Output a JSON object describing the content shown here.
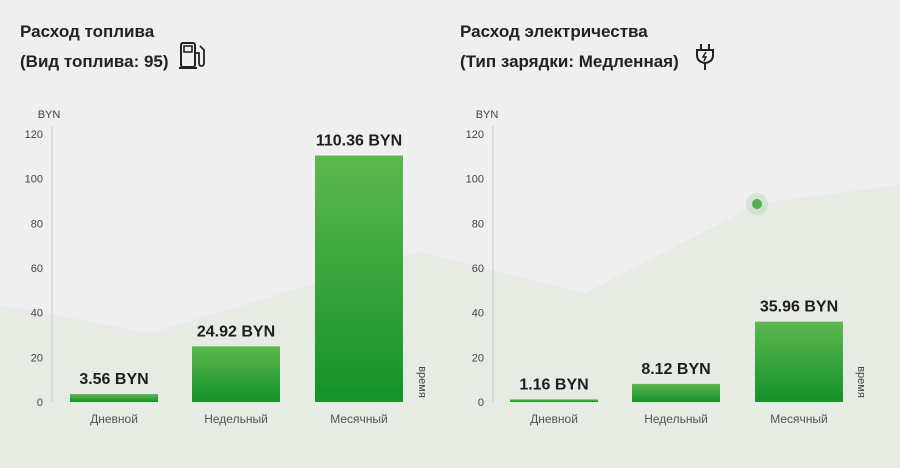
{
  "colors": {
    "background": "#efefef",
    "bar_top": "#5cb84e",
    "bar_bottom": "#15912a",
    "area_fill": "#e6ebe4",
    "marker": "#4caf50"
  },
  "fuel": {
    "title": "Расход топлива",
    "subtitle": "(Вид топлива: 95)",
    "icon": "fuel-pump-icon"
  },
  "electric": {
    "title": "Расход электричества",
    "subtitle": "(Тип зарядки: Медленная)",
    "icon": "charging-plug-icon"
  },
  "chart_data": [
    {
      "type": "bar",
      "categories": [
        "Дневной",
        "Недельный",
        "Месячный"
      ],
      "values": [
        3.56,
        24.92,
        110.36
      ],
      "value_labels": [
        "3.56 BYN",
        "24.92 BYN",
        "110.36 BYN"
      ],
      "ylabel": "BYN",
      "xlabel": "время",
      "ylim": [
        0,
        120
      ],
      "yticks": [
        "0",
        "20",
        "40",
        "60",
        "80",
        "100",
        "120"
      ],
      "grid": false
    },
    {
      "type": "bar",
      "categories": [
        "Дневной",
        "Недельный",
        "Месячный"
      ],
      "values": [
        1.16,
        8.12,
        35.96
      ],
      "value_labels": [
        "1.16 BYN",
        "8.12 BYN",
        "35.96 BYN"
      ],
      "ylabel": "BYN",
      "xlabel": "время",
      "ylim": [
        0,
        120
      ],
      "yticks": [
        "0",
        "20",
        "40",
        "60",
        "80",
        "100",
        "120"
      ],
      "grid": false
    }
  ]
}
